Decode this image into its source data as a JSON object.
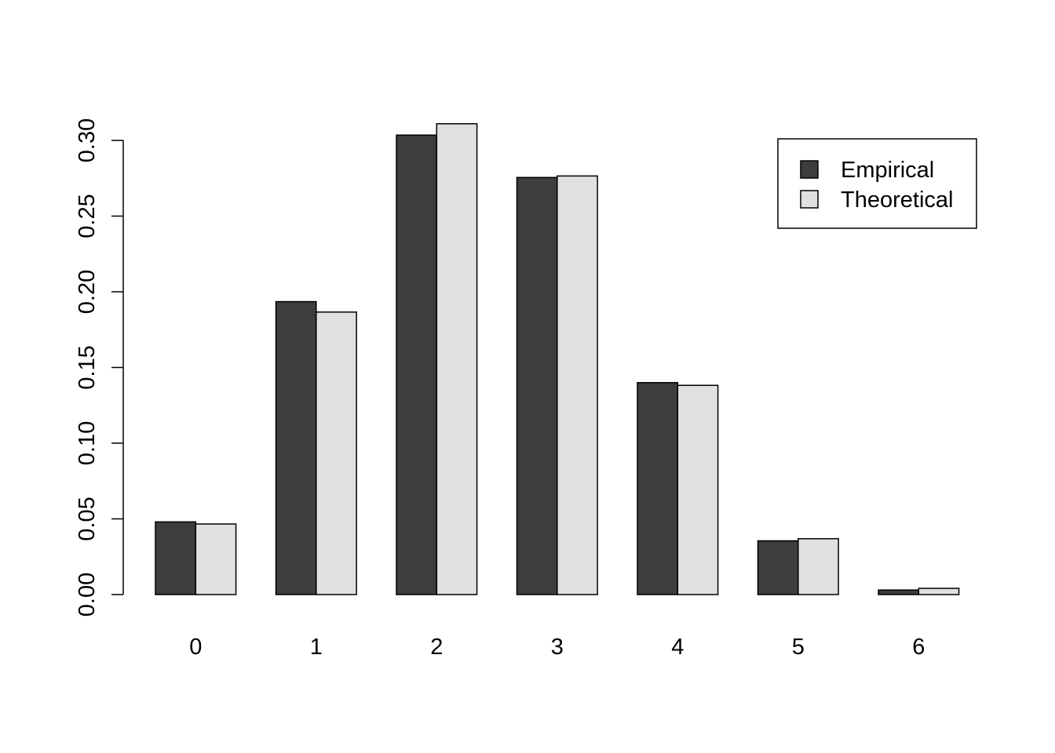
{
  "chart_data": {
    "type": "bar",
    "categories": [
      "0",
      "1",
      "2",
      "3",
      "4",
      "5",
      "6"
    ],
    "series": [
      {
        "name": "Empirical",
        "color": "#3d3d3d",
        "values": [
          0.048,
          0.1935,
          0.3035,
          0.2755,
          0.14,
          0.0355,
          0.003
        ]
      },
      {
        "name": "Theoretical",
        "color": "#e0e0e0",
        "values": [
          0.0466,
          0.1866,
          0.311,
          0.2765,
          0.1382,
          0.0369,
          0.0041
        ]
      }
    ],
    "y_ticks": [
      "0.00",
      "0.05",
      "0.10",
      "0.15",
      "0.20",
      "0.25",
      "0.30"
    ],
    "ylim": [
      0,
      0.3
    ],
    "grid": false,
    "legend_position": "top-right"
  }
}
